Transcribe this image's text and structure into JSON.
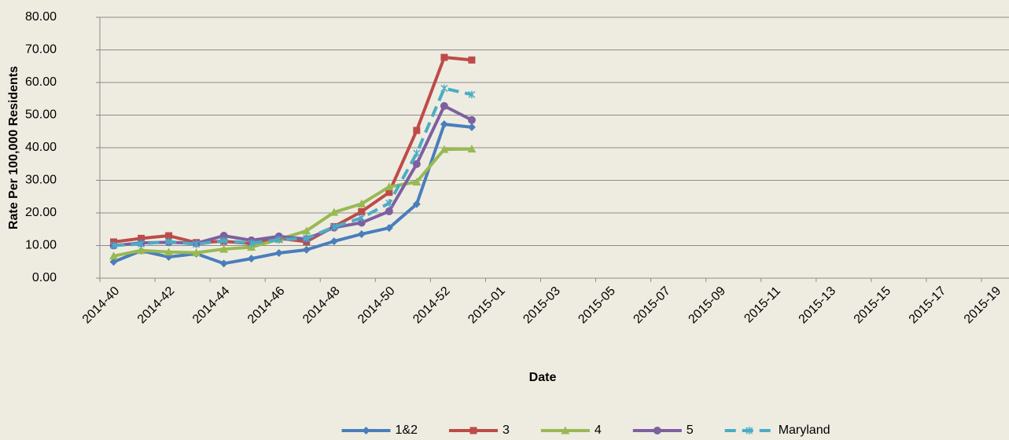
{
  "chart_data": {
    "type": "line",
    "x_label": "Date",
    "y_label": "Rate Per 100,000 Residents",
    "categories": [
      "2014-40",
      null,
      "2014-42",
      null,
      "2014-44",
      null,
      "2014-46",
      null,
      "2014-48",
      null,
      "2014-50",
      null,
      "2014-52",
      null,
      "2015-01",
      null,
      "2015-03",
      null,
      "2015-05",
      null,
      "2015-07",
      null,
      "2015-09",
      null,
      "2015-11",
      null,
      "2015-13",
      null,
      "2015-15",
      null,
      "2015-17",
      null,
      "2015-19"
    ],
    "series": [
      {
        "name": "1&2",
        "color": "#4a7ebb",
        "marker": "diamond",
        "dash": false,
        "values": [
          5.0,
          8.4,
          6.5,
          7.5,
          4.5,
          6.0,
          7.7,
          8.7,
          11.3,
          13.5,
          15.4,
          22.7,
          47.2,
          46.3,
          null,
          null,
          null,
          null,
          null,
          null,
          null,
          null,
          null,
          null,
          null,
          null,
          null,
          null,
          null,
          null,
          null,
          null,
          null
        ]
      },
      {
        "name": "3",
        "color": "#be4b48",
        "marker": "square",
        "dash": false,
        "values": [
          11.1,
          12.2,
          13.0,
          10.9,
          11.3,
          10.6,
          12.2,
          11.2,
          15.8,
          20.4,
          26.3,
          45.3,
          67.7,
          66.9,
          null,
          null,
          null,
          null,
          null,
          null,
          null,
          null,
          null,
          null,
          null,
          null,
          null,
          null,
          null,
          null,
          null,
          null,
          null
        ]
      },
      {
        "name": "4",
        "color": "#98b954",
        "marker": "triangle",
        "dash": false,
        "values": [
          6.8,
          8.5,
          8.0,
          7.8,
          8.9,
          9.5,
          11.9,
          14.5,
          20.2,
          22.8,
          28.0,
          29.5,
          39.5,
          39.6,
          null,
          null,
          null,
          null,
          null,
          null,
          null,
          null,
          null,
          null,
          null,
          null,
          null,
          null,
          null,
          null,
          null,
          null,
          null
        ]
      },
      {
        "name": "5",
        "color": "#7d60a0",
        "marker": "circle",
        "dash": false,
        "values": [
          10.0,
          10.8,
          11.0,
          10.7,
          13.0,
          11.6,
          12.8,
          12.0,
          15.5,
          17.0,
          20.5,
          35.0,
          52.8,
          48.5,
          null,
          null,
          null,
          null,
          null,
          null,
          null,
          null,
          null,
          null,
          null,
          null,
          null,
          null,
          null,
          null,
          null,
          null,
          null
        ]
      },
      {
        "name": "Maryland",
        "color": "#4bacc6",
        "marker": "star",
        "dash": true,
        "values": [
          10.0,
          10.5,
          11.2,
          10.4,
          11.5,
          10.7,
          11.8,
          12.2,
          15.7,
          18.5,
          23.0,
          38.3,
          58.2,
          56.3,
          null,
          null,
          null,
          null,
          null,
          null,
          null,
          null,
          null,
          null,
          null,
          null,
          null,
          null,
          null,
          null,
          null,
          null,
          null
        ]
      }
    ],
    "ylim": [
      0,
      80
    ],
    "yticks": [
      {
        "value": 0,
        "label": "0.00"
      },
      {
        "value": 10,
        "label": "10.00"
      },
      {
        "value": 20,
        "label": "20.00"
      },
      {
        "value": 30,
        "label": "30.00"
      },
      {
        "value": 40,
        "label": "40.00"
      },
      {
        "value": 50,
        "label": "50.00"
      },
      {
        "value": 60,
        "label": "60.00"
      },
      {
        "value": 70,
        "label": "70.00"
      },
      {
        "value": 80,
        "label": "80.00"
      }
    ],
    "grid": true,
    "legend": "bottom"
  }
}
